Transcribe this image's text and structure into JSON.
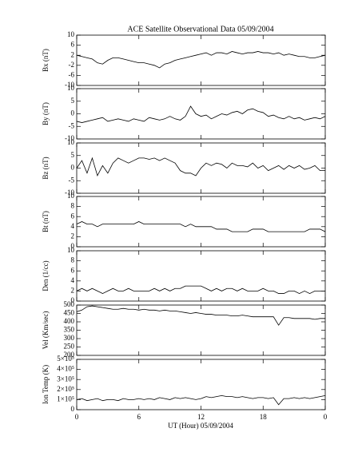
{
  "chart_data": [
    {
      "type": "line",
      "title": "ACE Satellite Observational Data   05/09/2004",
      "ylabel": "Bx (nT)",
      "color": "#000000",
      "xlim": [
        0,
        24
      ],
      "ylim": [
        -10,
        10
      ],
      "yticks": [
        10,
        6,
        2,
        -2,
        -6,
        -10
      ],
      "x": [
        0,
        0.5,
        1,
        1.5,
        2,
        2.5,
        3,
        3.5,
        4,
        4.5,
        5,
        5.5,
        6,
        6.5,
        7,
        7.5,
        8,
        8.5,
        9,
        9.5,
        10,
        10.5,
        11,
        11.5,
        12,
        12.5,
        13,
        13.5,
        14,
        14.5,
        15,
        15.5,
        16,
        16.5,
        17,
        17.5,
        18,
        18.5,
        19,
        19.5,
        20,
        20.5,
        21,
        21.5,
        22,
        22.5,
        23,
        23.5,
        24
      ],
      "values": [
        2,
        1.5,
        1,
        0.5,
        -1,
        -1.5,
        0,
        1,
        1,
        0.5,
        0,
        -0.5,
        -1,
        -1,
        -1.5,
        -2,
        -3,
        -1.5,
        -1,
        0,
        0.5,
        1,
        1.5,
        2,
        2.5,
        3,
        2,
        3,
        3,
        2.5,
        3.5,
        3,
        2.5,
        3,
        3,
        3.5,
        3,
        3,
        2.5,
        3,
        2,
        2.5,
        2,
        1.5,
        1.5,
        1,
        1,
        1.5,
        2
      ]
    },
    {
      "type": "line",
      "ylabel": "By (nT)",
      "color": "#000000",
      "xlim": [
        0,
        24
      ],
      "ylim": [
        -10,
        10
      ],
      "yticks": [
        10,
        5,
        0,
        -5,
        -10
      ],
      "x": [
        0,
        0.5,
        1,
        1.5,
        2,
        2.5,
        3,
        3.5,
        4,
        4.5,
        5,
        5.5,
        6,
        6.5,
        7,
        7.5,
        8,
        8.5,
        9,
        9.5,
        10,
        10.5,
        11,
        11.5,
        12,
        12.5,
        13,
        13.5,
        14,
        14.5,
        15,
        15.5,
        16,
        16.5,
        17,
        17.5,
        18,
        18.5,
        19,
        19.5,
        20,
        20.5,
        21,
        21.5,
        22,
        22.5,
        23,
        23.5,
        24
      ],
      "values": [
        -3,
        -3.5,
        -3,
        -2.5,
        -2,
        -1.5,
        -3,
        -2.5,
        -2,
        -2.5,
        -3,
        -2,
        -2.5,
        -3,
        -1.5,
        -2,
        -2.5,
        -2,
        -1,
        -2,
        -2.5,
        -1,
        3,
        0,
        -1,
        -0.5,
        -2,
        -1,
        0,
        -0.5,
        0.5,
        1,
        0,
        1.5,
        2,
        1,
        0.5,
        -1,
        -0.5,
        -1.5,
        -2,
        -1,
        -2,
        -1.5,
        -2.5,
        -2,
        -1.5,
        -2,
        -1
      ]
    },
    {
      "type": "line",
      "ylabel": "Bz (nT)",
      "color": "#000000",
      "xlim": [
        0,
        24
      ],
      "ylim": [
        -10,
        10
      ],
      "yticks": [
        10,
        5,
        0,
        -5,
        -10
      ],
      "x": [
        0,
        0.5,
        1,
        1.5,
        2,
        2.5,
        3,
        3.5,
        4,
        4.5,
        5,
        5.5,
        6,
        6.5,
        7,
        7.5,
        8,
        8.5,
        9,
        9.5,
        10,
        10.5,
        11,
        11.5,
        12,
        12.5,
        13,
        13.5,
        14,
        14.5,
        15,
        15.5,
        16,
        16.5,
        17,
        17.5,
        18,
        18.5,
        19,
        19.5,
        20,
        20.5,
        21,
        21.5,
        22,
        22.5,
        23,
        23.5,
        24
      ],
      "values": [
        0,
        3,
        -2,
        4,
        -3,
        1,
        -2,
        2,
        4,
        3,
        2,
        3,
        4,
        4,
        3.5,
        4,
        3,
        4,
        3,
        2,
        -1,
        -2,
        -2,
        -3,
        0,
        2,
        1,
        2,
        1.5,
        0,
        2,
        1,
        1,
        0.5,
        2,
        0,
        1,
        -1,
        0,
        1,
        -0.5,
        1,
        0,
        1,
        -0.5,
        0,
        1,
        -1,
        -1
      ]
    },
    {
      "type": "line",
      "ylabel": "Bt (nT)",
      "color": "#000000",
      "xlim": [
        0,
        24
      ],
      "ylim": [
        0,
        10
      ],
      "yticks": [
        10,
        8,
        6,
        4,
        2,
        0
      ],
      "x": [
        0,
        0.5,
        1,
        1.5,
        2,
        2.5,
        3,
        3.5,
        4,
        4.5,
        5,
        5.5,
        6,
        6.5,
        7,
        7.5,
        8,
        8.5,
        9,
        9.5,
        10,
        10.5,
        11,
        11.5,
        12,
        12.5,
        13,
        13.5,
        14,
        14.5,
        15,
        15.5,
        16,
        16.5,
        17,
        17.5,
        18,
        18.5,
        19,
        19.5,
        20,
        20.5,
        21,
        21.5,
        22,
        22.5,
        23,
        23.5,
        24
      ],
      "values": [
        4.5,
        5,
        4.5,
        4.5,
        4,
        4.5,
        4.5,
        4.5,
        4.5,
        4.5,
        4.5,
        4.5,
        5,
        4.5,
        4.5,
        4.5,
        4.5,
        4.5,
        4.5,
        4.5,
        4.5,
        4,
        4.5,
        4,
        4,
        4,
        4,
        3.5,
        3.5,
        3.5,
        3,
        3,
        3,
        3,
        3.5,
        3.5,
        3.5,
        3,
        3,
        3,
        3,
        3,
        3,
        3,
        3,
        3.5,
        3.5,
        3.5,
        3
      ]
    },
    {
      "type": "line",
      "ylabel": "Den (1/cc)",
      "color": "#000000",
      "xlim": [
        0,
        24
      ],
      "ylim": [
        0,
        10
      ],
      "yticks": [
        10,
        8,
        6,
        4,
        2,
        0
      ],
      "x": [
        0,
        0.5,
        1,
        1.5,
        2,
        2.5,
        3,
        3.5,
        4,
        4.5,
        5,
        5.5,
        6,
        6.5,
        7,
        7.5,
        8,
        8.5,
        9,
        9.5,
        10,
        10.5,
        11,
        11.5,
        12,
        12.5,
        13,
        13.5,
        14,
        14.5,
        15,
        15.5,
        16,
        16.5,
        17,
        17.5,
        18,
        18.5,
        19,
        19.5,
        20,
        20.5,
        21,
        21.5,
        22,
        22.5,
        23,
        23.5,
        24
      ],
      "values": [
        2,
        2.5,
        2,
        2.5,
        2,
        1.5,
        2,
        2.5,
        2,
        2,
        2.5,
        2,
        2,
        2,
        2,
        2.5,
        2,
        2.5,
        2,
        2.5,
        2.5,
        3,
        3,
        3,
        3,
        2.5,
        2,
        2.5,
        2,
        2.5,
        2.5,
        2,
        2.5,
        2,
        2,
        2,
        2.5,
        2,
        2,
        1.5,
        1.5,
        2,
        2,
        1.5,
        2,
        1.5,
        2,
        2,
        2
      ]
    },
    {
      "type": "line",
      "ylabel": "Vel (Km/sec)",
      "color": "#000000",
      "xlim": [
        0,
        24
      ],
      "ylim": [
        200,
        500
      ],
      "yticks": [
        500,
        450,
        400,
        350,
        300,
        250,
        200
      ],
      "x": [
        0,
        0.5,
        1,
        1.5,
        2,
        2.5,
        3,
        3.5,
        4,
        4.5,
        5,
        5.5,
        6,
        6.5,
        7,
        7.5,
        8,
        8.5,
        9,
        9.5,
        10,
        10.5,
        11,
        11.5,
        12,
        12.5,
        13,
        13.5,
        14,
        14.5,
        15,
        15.5,
        16,
        16.5,
        17,
        17.5,
        18,
        18.5,
        19,
        19.5,
        20,
        20.5,
        21,
        21.5,
        22,
        22.5,
        23,
        23.5,
        24
      ],
      "values": [
        460,
        470,
        490,
        495,
        490,
        485,
        480,
        475,
        475,
        480,
        475,
        475,
        470,
        475,
        470,
        470,
        465,
        470,
        465,
        465,
        460,
        455,
        450,
        455,
        450,
        445,
        445,
        440,
        440,
        440,
        435,
        435,
        440,
        435,
        430,
        430,
        430,
        430,
        430,
        380,
        425,
        425,
        420,
        420,
        420,
        420,
        415,
        420,
        420
      ]
    },
    {
      "type": "line",
      "ylabel": "Ion Temp (K)",
      "xlabel": "UT (Hour)   05/09/2004",
      "color": "#000000",
      "xlim": [
        0,
        24
      ],
      "xticks": [
        0,
        6,
        12,
        18,
        {
          "value": 24,
          "label": "0"
        }
      ],
      "ylim": [
        0,
        500000
      ],
      "yticks": [
        {
          "value": 500000,
          "label": "5×10⁵"
        },
        {
          "value": 400000,
          "label": "4×10⁵"
        },
        {
          "value": 300000,
          "label": "3×10⁵"
        },
        {
          "value": 200000,
          "label": "2×10⁵"
        },
        {
          "value": 100000,
          "label": "1×10⁵"
        },
        0
      ],
      "x": [
        0,
        0.5,
        1,
        1.5,
        2,
        2.5,
        3,
        3.5,
        4,
        4.5,
        5,
        5.5,
        6,
        6.5,
        7,
        7.5,
        8,
        8.5,
        9,
        9.5,
        10,
        10.5,
        11,
        11.5,
        12,
        12.5,
        13,
        13.5,
        14,
        14.5,
        15,
        15.5,
        16,
        16.5,
        17,
        17.5,
        18,
        18.5,
        19,
        19.5,
        20,
        20.5,
        21,
        21.5,
        22,
        22.5,
        23,
        23.5,
        24
      ],
      "values": [
        100000,
        110000,
        90000,
        100000,
        110000,
        90000,
        100000,
        100000,
        90000,
        110000,
        100000,
        100000,
        110000,
        100000,
        110000,
        100000,
        120000,
        110000,
        100000,
        120000,
        110000,
        120000,
        110000,
        100000,
        110000,
        130000,
        120000,
        130000,
        140000,
        130000,
        130000,
        120000,
        130000,
        120000,
        110000,
        120000,
        120000,
        110000,
        120000,
        50000,
        110000,
        110000,
        120000,
        110000,
        120000,
        110000,
        120000,
        130000,
        140000
      ]
    }
  ]
}
